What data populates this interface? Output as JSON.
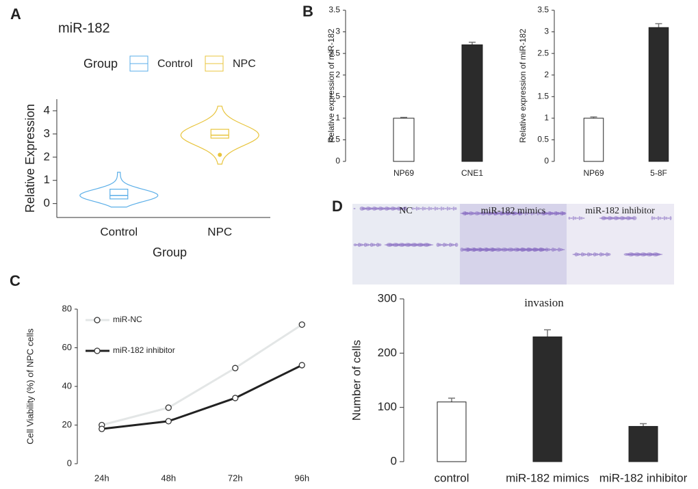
{
  "chart_data": [
    {
      "panel": "A",
      "type": "violin",
      "title": "miR-182",
      "legend_title": "Group",
      "categories": [
        "Control",
        "NPC"
      ],
      "colors": [
        "#5aaee8",
        "#e8c43c"
      ],
      "boxes": [
        {
          "min": -0.15,
          "q1": 0.2,
          "median": 0.35,
          "q3": 0.62,
          "max": 1.35,
          "outliers": []
        },
        {
          "min": 1.7,
          "q1": 2.82,
          "median": 2.95,
          "q3": 3.2,
          "max": 4.2,
          "outliers": [
            2.1
          ]
        }
      ],
      "xlabel": "Group",
      "ylabel": "Relative Expression",
      "ylim": [
        -0.6,
        4.5
      ],
      "yticks": [
        0,
        1,
        2,
        3,
        4
      ]
    },
    {
      "panel": "B",
      "type": "bar",
      "categories": [
        "NP69",
        "CNE1"
      ],
      "values": [
        1,
        2.7
      ],
      "errors": [
        0.02,
        0.06
      ],
      "colors": [
        "#ffffff",
        "#2b2b2b"
      ],
      "ylabel": "Relative expression of miR-182",
      "ylim": [
        0,
        3.5
      ],
      "yticks": [
        0,
        0.5,
        1,
        1.5,
        2,
        2.5,
        3,
        3.5
      ]
    },
    {
      "type": "bar",
      "categories": [
        "NP69",
        "5-8F"
      ],
      "values": [
        1,
        3.1
      ],
      "errors": [
        0.03,
        0.09
      ],
      "colors": [
        "#ffffff",
        "#2b2b2b"
      ],
      "ylabel": "Relative expression of miR-182",
      "ylim": [
        0,
        3.5
      ],
      "yticks": [
        0,
        0.5,
        1,
        1.5,
        2,
        2.5,
        3,
        3.5
      ]
    },
    {
      "panel": "C",
      "type": "line",
      "categories": [
        "24h",
        "48h",
        "72h",
        "96h"
      ],
      "series": [
        {
          "name": "miR-NC",
          "color": "#e3e6e6",
          "values": [
            20,
            29,
            49.5,
            72
          ]
        },
        {
          "name": "miR-182 inhibitor",
          "color": "#222222",
          "values": [
            18,
            22,
            34,
            51
          ]
        }
      ],
      "ylabel": "Cell Viability (%) of NPC cells",
      "ylim": [
        0,
        80
      ],
      "yticks": [
        0,
        20,
        40,
        60,
        80
      ]
    },
    {
      "panel": "D",
      "type": "bar",
      "image_labels": [
        "NC",
        "miR-182 mimics",
        "miR-182 inhibitor"
      ],
      "title": "invasion",
      "categories": [
        "control",
        "miR-182 mimics",
        "miR-182 inhibitor"
      ],
      "values": [
        110,
        230,
        65
      ],
      "errors": [
        7,
        13,
        5
      ],
      "colors": [
        "#ffffff",
        "#2b2b2b",
        "#2b2b2b"
      ],
      "ylabel": "Number of cells",
      "ylim": [
        0,
        300
      ],
      "yticks": [
        0,
        100,
        200,
        300
      ]
    }
  ]
}
